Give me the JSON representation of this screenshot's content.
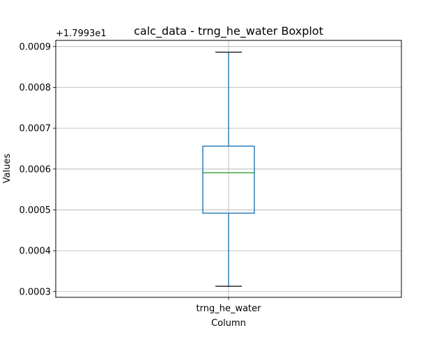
{
  "chart_data": {
    "type": "boxplot",
    "title": "calc_data - trng_he_water Boxplot",
    "xlabel": "Column",
    "ylabel": "Values",
    "y_offset_label": "+1.7993e1",
    "y_offset": 17.993,
    "categories": [
      "trng_he_water"
    ],
    "boxes": [
      {
        "category": "trng_he_water",
        "whisker_low": 0.000313,
        "q1": 0.000492,
        "median": 0.000591,
        "q3": 0.000656,
        "whisker_high": 0.000886
      }
    ],
    "ylim": [
      0.000286,
      0.000915
    ],
    "yticks": [
      0.0003,
      0.0004,
      0.0005,
      0.0006,
      0.0007,
      0.0008,
      0.0009
    ],
    "ytick_labels": [
      "0.0003",
      "0.0004",
      "0.0005",
      "0.0006",
      "0.0007",
      "0.0008",
      "0.0009"
    ],
    "grid": true,
    "colors": {
      "box": "#1f77b4",
      "whisker": "#1f77b4",
      "cap": "#000000",
      "median": "#2ca02c",
      "grid": "#b0b0b0",
      "axes": "#000000"
    }
  }
}
